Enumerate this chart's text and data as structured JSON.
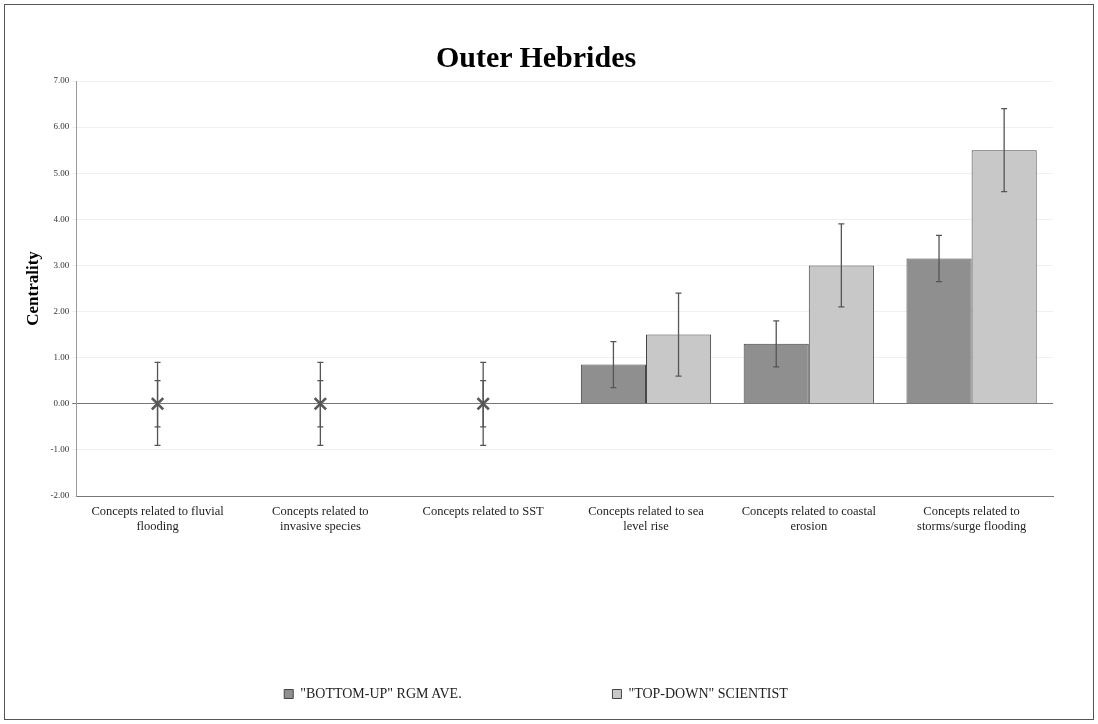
{
  "chart_data": {
    "type": "bar",
    "title": "Outer Hebrides",
    "ylabel": "Centrality",
    "categories": [
      "Concepts related to fluvial flooding",
      "Concepts related to invasive species",
      "Concepts related to SST",
      "Concepts related to sea level rise",
      "Concepts related to coastal erosion",
      "Concepts related to storms/surge flooding"
    ],
    "series": [
      {
        "name": "\"BOTTOM-UP\" RGM AVE.",
        "color": "#8f8f8f",
        "values": [
          null,
          null,
          null,
          0.85,
          1.3,
          3.15
        ],
        "errors": [
          null,
          null,
          null,
          0.5,
          0.5,
          0.5
        ]
      },
      {
        "name": "\"TOP-DOWN\" SCIENTIST",
        "color": "#c8c8c8",
        "values": [
          null,
          null,
          null,
          1.5,
          3.0,
          5.5
        ],
        "errors": [
          null,
          null,
          null,
          0.9,
          0.9,
          0.9
        ]
      },
      {
        "type": "scatter",
        "color": "#595959",
        "x": [
          "Concepts related to fluvial flooding",
          "Concepts related to invasive species",
          "Concepts related to SST"
        ],
        "values": [
          0,
          0,
          0
        ],
        "errors": [
          0.5,
          0.5,
          0.5
        ]
      },
      {
        "type": "scatter",
        "color": "#c8c8c8",
        "x": [
          "Concepts related to fluvial flooding",
          "Concepts related to invasive species",
          "Concepts related to SST"
        ],
        "values": [
          0,
          0,
          0
        ],
        "errors": [
          0.9,
          0.9,
          0.9
        ]
      }
    ],
    "ylim": [
      -2,
      7
    ],
    "yticks": [
      {
        "value": -2,
        "label": "-2.00"
      },
      {
        "value": -1,
        "label": "-1.00"
      },
      {
        "value": 0,
        "label": "0.00"
      },
      {
        "value": 1,
        "label": "1.00"
      },
      {
        "value": 2,
        "label": "2.00"
      },
      {
        "value": 3,
        "label": "3.00"
      },
      {
        "value": 4,
        "label": "4.00"
      },
      {
        "value": 5,
        "label": "5.00"
      },
      {
        "value": 6,
        "label": "6.00"
      },
      {
        "value": 7,
        "label": "7.00"
      }
    ],
    "grid": "y",
    "legend": "bottom",
    "marker": "cross"
  }
}
